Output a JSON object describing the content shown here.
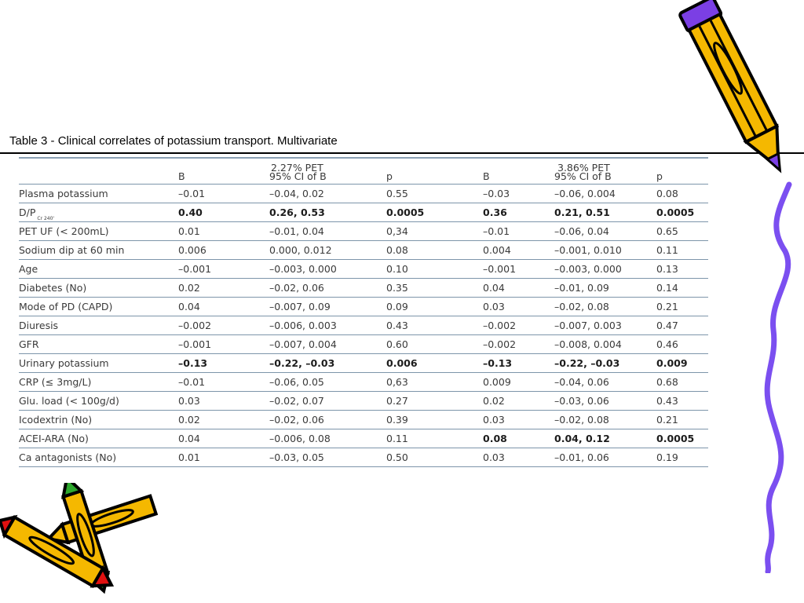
{
  "caption": "Table 3 - Clinical correlates of potassium transport. Multivariate",
  "groups": [
    "2.27% PET",
    "3.86% PET"
  ],
  "headers": [
    "B",
    "95% CI of B",
    "p",
    "B",
    "95% CI of B",
    "p"
  ],
  "rows": [
    {
      "label": "Plasma potassium",
      "sub": "",
      "cells": [
        "–0.01",
        "–0.04, 0.02",
        "0.55",
        "–0.03",
        "–0.06, 0.004",
        "0.08"
      ]
    },
    {
      "label": "D/P",
      "sub": "Cr 240'",
      "cells": [
        "0.40",
        "0.26, 0.53",
        "0.0005",
        "0.36",
        "0.21, 0.51",
        "0.0005"
      ]
    },
    {
      "label": "PET UF (< 200mL)",
      "sub": "",
      "cells": [
        "0.01",
        "–0.01, 0.04",
        "0,34",
        "–0.01",
        "–0.06, 0.04",
        "0.65"
      ]
    },
    {
      "label": "Sodium dip at 60 min",
      "sub": "",
      "cells": [
        "0.006",
        "0.000, 0.012",
        "0.08",
        "0.004",
        "–0.001, 0.010",
        "0.11"
      ]
    },
    {
      "label": "Age",
      "sub": "",
      "cells": [
        "–0.001",
        "–0.003, 0.000",
        "0.10",
        "–0.001",
        "–0.003, 0.000",
        "0.13"
      ]
    },
    {
      "label": "Diabetes (No)",
      "sub": "",
      "cells": [
        "0.02",
        "–0.02, 0.06",
        "0.35",
        "0.04",
        "–0.01, 0.09",
        "0.14"
      ]
    },
    {
      "label": "Mode of PD (CAPD)",
      "sub": "",
      "cells": [
        "0.04",
        "–0.007, 0.09",
        "0.09",
        "0.03",
        "–0.02, 0.08",
        "0.21"
      ]
    },
    {
      "label": "Diuresis",
      "sub": "",
      "cells": [
        "–0.002",
        "–0.006, 0.003",
        "0.43",
        "–0.002",
        "–0.007, 0.003",
        "0.47"
      ]
    },
    {
      "label": "GFR",
      "sub": "",
      "cells": [
        "–0.001",
        "–0.007, 0.004",
        "0.60",
        "–0.002",
        "–0.008, 0.004",
        "0.46"
      ]
    },
    {
      "label": "Urinary potassium",
      "sub": "",
      "cells": [
        "–0.13",
        "–0.22, –0.03",
        "0.006",
        "–0.13",
        "–0.22, –0.03",
        "0.009"
      ]
    },
    {
      "label": "CRP (≤ 3mg/L)",
      "sub": "",
      "cells": [
        "–0.01",
        "–0.06, 0.05",
        "0,63",
        "0.009",
        "–0.04, 0.06",
        "0.68"
      ]
    },
    {
      "label": "Glu. load (< 100g/d)",
      "sub": "",
      "cells": [
        "0.03",
        "–0.02, 0.07",
        "0.27",
        "0.02",
        "–0.03, 0.06",
        "0.43"
      ]
    },
    {
      "label": "Icodextrin (No)",
      "sub": "",
      "cells": [
        "0.02",
        "–0.02, 0.06",
        "0.39",
        "0.03",
        "–0.02, 0.08",
        "0.21"
      ]
    },
    {
      "label": "ACEI-ARA (No)",
      "sub": "",
      "cells": [
        "0.04",
        "–0.006, 0.08",
        "0.11",
        "0.08",
        "0.04, 0.12",
        "0.0005"
      ]
    },
    {
      "label": "Ca antagonists (No)",
      "sub": "",
      "cells": [
        "0.01",
        "–0.03, 0.05",
        "0.50",
        "0.03",
        "–0.01, 0.06",
        "0.19"
      ]
    }
  ],
  "colors": {
    "rule": "#7d95aa",
    "pencil_body": "#f5b800",
    "pencil_tip_purple": "#7b3fe4",
    "squiggle": "#7b4ff0"
  }
}
